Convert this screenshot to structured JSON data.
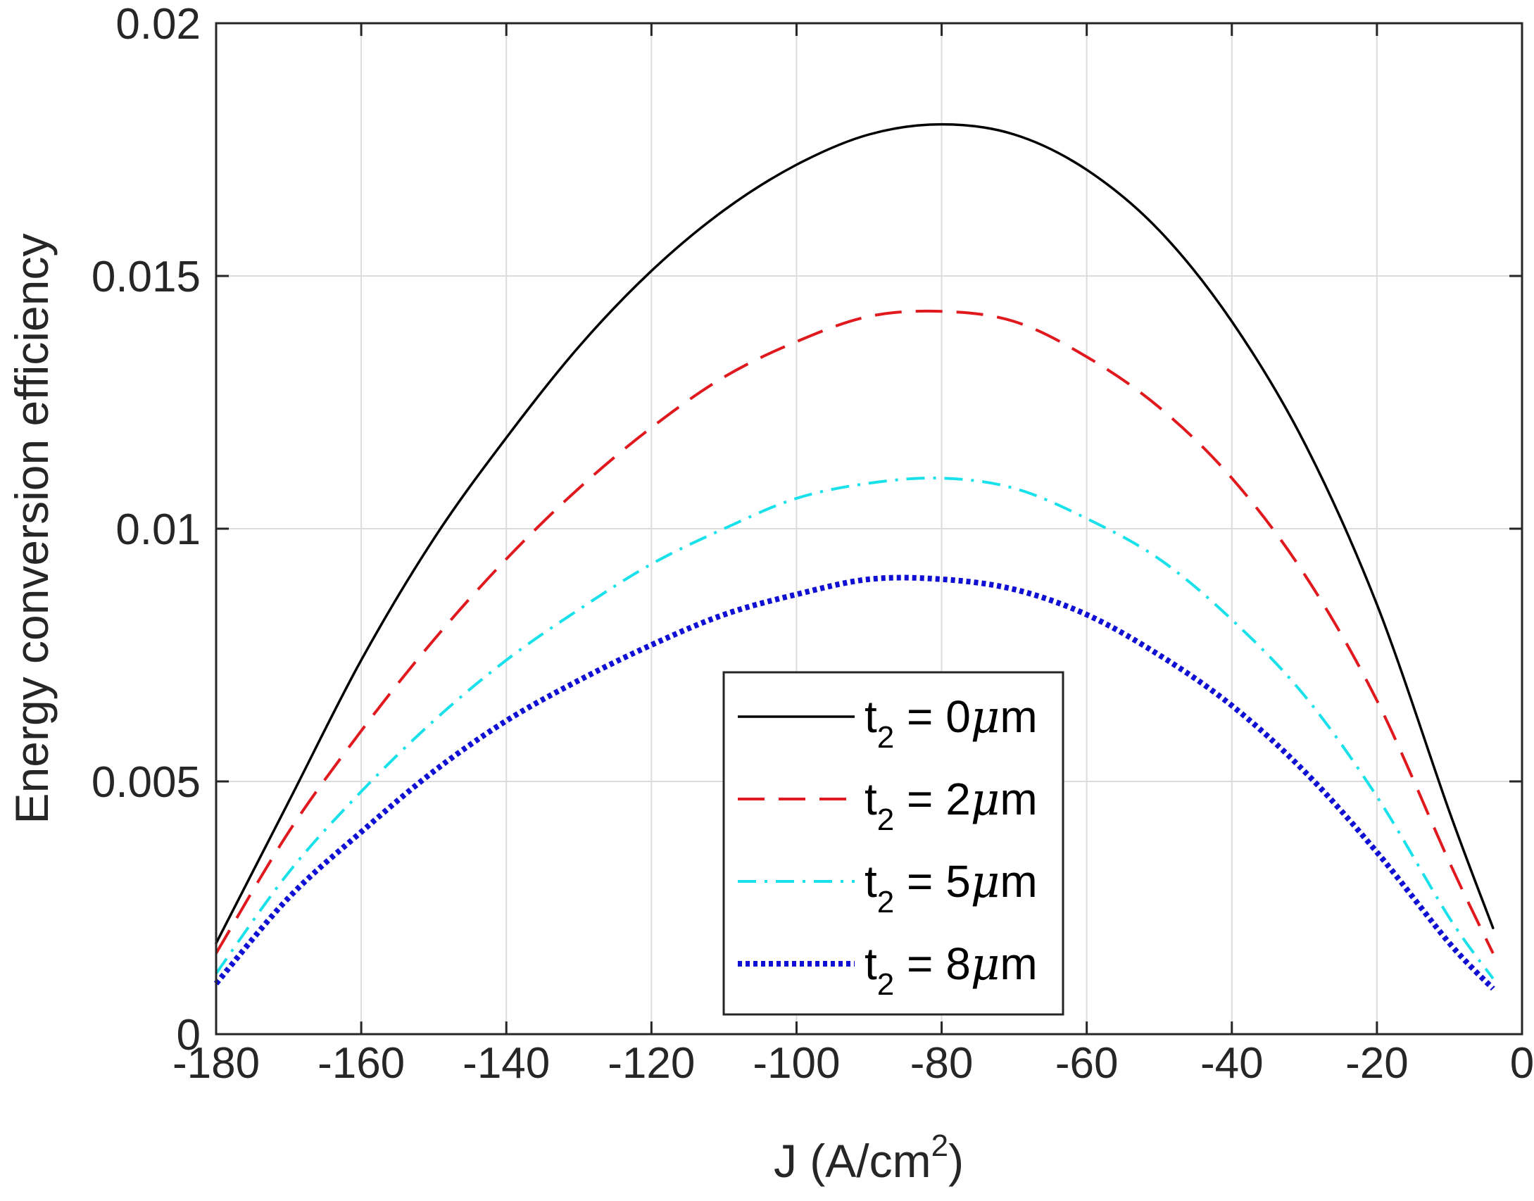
{
  "chart_data": {
    "type": "line",
    "title": "",
    "xlabel": "J (A/cm",
    "xlabel_sup": "2",
    "xlabel_close": ")",
    "ylabel": "Energy conversion efficiency",
    "xlim": [
      -180,
      0
    ],
    "ylim": [
      0,
      0.02
    ],
    "grid": true,
    "legend_position": "bottom-center",
    "x_ticks": [
      -180,
      -160,
      -140,
      -120,
      -100,
      -80,
      -60,
      -40,
      -20,
      0
    ],
    "x_tick_labels": [
      "-180",
      "-160",
      "-140",
      "-120",
      "-100",
      "-80",
      "-60",
      "-40",
      "-20",
      "0"
    ],
    "y_ticks": [
      0,
      0.005,
      0.01,
      0.015,
      0.02
    ],
    "y_tick_labels": [
      "0",
      "0.005",
      "0.01",
      "0.015",
      "0.02"
    ],
    "x": [
      -180,
      -170,
      -160,
      -150,
      -140,
      -130,
      -120,
      -110,
      -100,
      -90,
      -80,
      -70,
      -60,
      -50,
      -40,
      -30,
      -20,
      -10,
      -4
    ],
    "series": [
      {
        "name": "t2 = 0μm",
        "label_main": "t",
        "label_sub": "2",
        "label_rest": " = 0",
        "label_mu": "μ",
        "label_unit": "m",
        "color": "#000000",
        "style": "solid",
        "values": [
          0.0018,
          0.0046,
          0.0074,
          0.0098,
          0.0118,
          0.0136,
          0.0151,
          0.0163,
          0.0172,
          0.0178,
          0.018,
          0.0178,
          0.0171,
          0.0159,
          0.0141,
          0.0117,
          0.0085,
          0.0044,
          0.0021
        ]
      },
      {
        "name": "t2 = 2μm",
        "label_main": "t",
        "label_sub": "2",
        "label_rest": " = 2",
        "label_mu": "μ",
        "label_unit": "m",
        "color": "#e0191e",
        "style": "dashed",
        "values": [
          0.0016,
          0.004,
          0.006,
          0.0078,
          0.0094,
          0.0108,
          0.012,
          0.013,
          0.0137,
          0.0142,
          0.0143,
          0.0141,
          0.0134,
          0.0124,
          0.011,
          0.0091,
          0.0066,
          0.0034,
          0.0016
        ]
      },
      {
        "name": "t2 = 5μm",
        "label_main": "t",
        "label_sub": "2",
        "label_rest": " = 5",
        "label_mu": "μ",
        "label_unit": "m",
        "color": "#19e1ea",
        "style": "dashdot",
        "values": [
          0.0012,
          0.0032,
          0.0048,
          0.0062,
          0.0074,
          0.0084,
          0.0093,
          0.01,
          0.0106,
          0.0109,
          0.011,
          0.0108,
          0.0102,
          0.0094,
          0.0082,
          0.0067,
          0.0047,
          0.0023,
          0.0011
        ]
      },
      {
        "name": "t2 = 8μm",
        "label_main": "t",
        "label_sub": "2",
        "label_rest": " = 8",
        "label_mu": "μ",
        "label_unit": "m",
        "color": "#1010d4",
        "style": "dotted",
        "values": [
          0.001,
          0.0027,
          0.004,
          0.0052,
          0.0062,
          0.007,
          0.0077,
          0.0083,
          0.0087,
          0.009,
          0.009,
          0.0088,
          0.0083,
          0.0075,
          0.0065,
          0.0052,
          0.0036,
          0.0018,
          0.0009
        ]
      }
    ]
  }
}
